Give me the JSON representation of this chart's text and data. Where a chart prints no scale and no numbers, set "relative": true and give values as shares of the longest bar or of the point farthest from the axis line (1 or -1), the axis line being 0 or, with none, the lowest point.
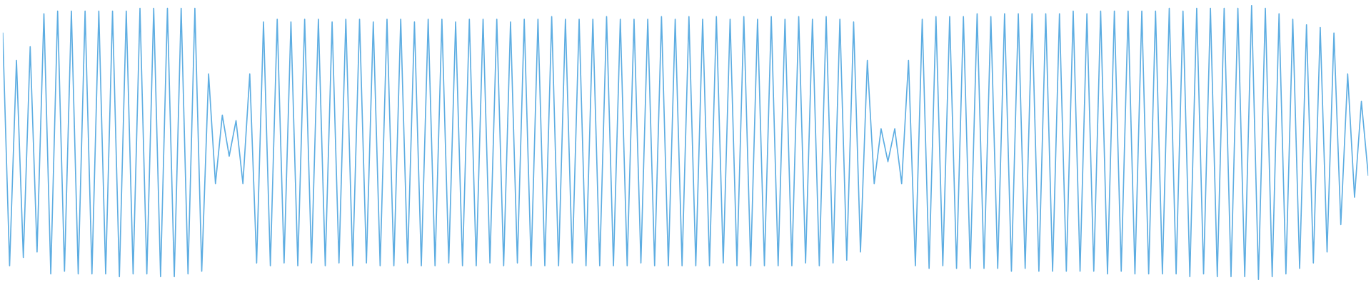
{
  "chart_data": {
    "type": "line",
    "relative": true,
    "grid": false,
    "legend": false,
    "categories": [
      null,
      null,
      null,
      null,
      null,
      null,
      null,
      null,
      null,
      null,
      null,
      null,
      null,
      null,
      null,
      null,
      null,
      null,
      null,
      null,
      null,
      null,
      null,
      null,
      null,
      null,
      null,
      null,
      null,
      null,
      null,
      null,
      null,
      null,
      null,
      null,
      null,
      null,
      null,
      null,
      null,
      null,
      null,
      null,
      null,
      null,
      null,
      null,
      null,
      null,
      null,
      null,
      null,
      null,
      null,
      null,
      null,
      null,
      null,
      null,
      null,
      null,
      null,
      null,
      null,
      null,
      null,
      null,
      null,
      null,
      null,
      null,
      null,
      null,
      null,
      null,
      null,
      null,
      null,
      null,
      null,
      null,
      null,
      null,
      null,
      null,
      null,
      null,
      null,
      null,
      null,
      null,
      null,
      null,
      null,
      null,
      null,
      null,
      null,
      null,
      null,
      null,
      null,
      null,
      null,
      null,
      null,
      null,
      null,
      null,
      null,
      null,
      null,
      null,
      null,
      null,
      null,
      null,
      null,
      null,
      null,
      null,
      null,
      null,
      null,
      null,
      null,
      null,
      null,
      null,
      null,
      null,
      null,
      null,
      null,
      null,
      null,
      null,
      null,
      null,
      null,
      null,
      null,
      null,
      null,
      null,
      null,
      null,
      null,
      null,
      null,
      null,
      null,
      null,
      null,
      null,
      null,
      null,
      null,
      null,
      null,
      null,
      null,
      null,
      null,
      null,
      null,
      null,
      null,
      null,
      null,
      null,
      null,
      null,
      null,
      null,
      null,
      null,
      null,
      null,
      null,
      null,
      null,
      null,
      null,
      null,
      null,
      null,
      null,
      null,
      null,
      null,
      null,
      null,
      null,
      null,
      null,
      null,
      null,
      null
    ],
    "series": [
      {
        "color": "#5dade2",
        "values": [
          0.9,
          0.05,
          0.8,
          0.08,
          0.85,
          0.1,
          0.97,
          0.02,
          0.98,
          0.03,
          0.98,
          0.02,
          0.98,
          0.02,
          0.98,
          0.02,
          0.98,
          0.01,
          0.98,
          0.02,
          0.99,
          0.02,
          0.99,
          0.01,
          0.99,
          0.01,
          0.99,
          0.02,
          0.99,
          0.03,
          0.75,
          0.35,
          0.6,
          0.45,
          0.58,
          0.35,
          0.75,
          0.06,
          0.94,
          0.05,
          0.95,
          0.06,
          0.94,
          0.05,
          0.95,
          0.06,
          0.95,
          0.05,
          0.94,
          0.06,
          0.95,
          0.05,
          0.95,
          0.06,
          0.94,
          0.05,
          0.95,
          0.05,
          0.95,
          0.06,
          0.94,
          0.05,
          0.95,
          0.05,
          0.95,
          0.06,
          0.94,
          0.05,
          0.95,
          0.05,
          0.95,
          0.06,
          0.95,
          0.05,
          0.94,
          0.06,
          0.95,
          0.05,
          0.95,
          0.05,
          0.96,
          0.05,
          0.95,
          0.06,
          0.95,
          0.05,
          0.95,
          0.05,
          0.96,
          0.05,
          0.95,
          0.05,
          0.95,
          0.06,
          0.95,
          0.05,
          0.96,
          0.05,
          0.95,
          0.05,
          0.96,
          0.05,
          0.95,
          0.05,
          0.96,
          0.06,
          0.95,
          0.05,
          0.96,
          0.05,
          0.95,
          0.05,
          0.96,
          0.05,
          0.95,
          0.05,
          0.96,
          0.06,
          0.95,
          0.05,
          0.96,
          0.06,
          0.95,
          0.07,
          0.94,
          0.1,
          0.8,
          0.35,
          0.55,
          0.43,
          0.55,
          0.35,
          0.8,
          0.05,
          0.95,
          0.04,
          0.96,
          0.05,
          0.96,
          0.04,
          0.96,
          0.04,
          0.97,
          0.04,
          0.96,
          0.04,
          0.97,
          0.03,
          0.97,
          0.04,
          0.97,
          0.03,
          0.97,
          0.03,
          0.97,
          0.03,
          0.98,
          0.03,
          0.97,
          0.03,
          0.98,
          0.02,
          0.98,
          0.03,
          0.98,
          0.02,
          0.98,
          0.02,
          0.98,
          0.02,
          0.99,
          0.02,
          0.98,
          0.01,
          0.99,
          0.02,
          0.99,
          0.01,
          0.99,
          0.01,
          0.99,
          0.01,
          1,
          0,
          0.99,
          0.01,
          0.97,
          0.02,
          0.95,
          0.04,
          0.93,
          0.06,
          0.92,
          0.1,
          0.9,
          0.2,
          0.75,
          0.3,
          0.65,
          0.38
        ]
      }
    ]
  }
}
